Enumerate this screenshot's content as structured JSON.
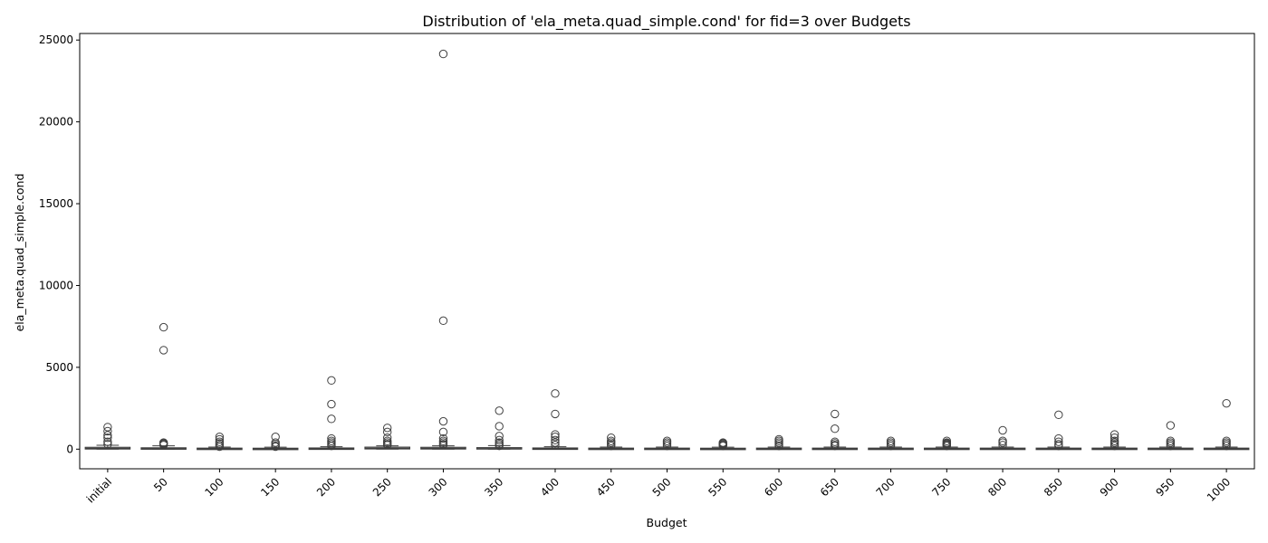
{
  "chart_data": {
    "type": "box",
    "title": "Distribution of 'ela_meta.quad_simple.cond' for fid=3 over Budgets",
    "xlabel": "Budget",
    "ylabel": "ela_meta.quad_simple.cond",
    "ylim": [
      -1200,
      25400
    ],
    "yticks": [
      0,
      5000,
      10000,
      15000,
      20000,
      25000
    ],
    "grid": false,
    "categories": [
      "initial",
      "50",
      "100",
      "150",
      "200",
      "250",
      "300",
      "350",
      "400",
      "450",
      "500",
      "550",
      "600",
      "650",
      "700",
      "750",
      "800",
      "850",
      "900",
      "950",
      "1000"
    ],
    "boxes": [
      {
        "q1": 10,
        "median": 40,
        "q3": 110,
        "whisker_low": 2,
        "whisker_high": 240,
        "outliers": [
          1350,
          1100,
          850,
          700,
          450,
          300
        ]
      },
      {
        "q1": 5,
        "median": 25,
        "q3": 80,
        "whisker_low": 1,
        "whisker_high": 200,
        "outliers": [
          7450,
          6050,
          400,
          350,
          300,
          250
        ]
      },
      {
        "q1": 5,
        "median": 20,
        "q3": 60,
        "whisker_low": 1,
        "whisker_high": 130,
        "outliers": [
          750,
          600,
          450,
          350,
          250,
          150
        ]
      },
      {
        "q1": 5,
        "median": 20,
        "q3": 55,
        "whisker_low": 1,
        "whisker_high": 120,
        "outliers": [
          750,
          400,
          300,
          200,
          150
        ]
      },
      {
        "q1": 5,
        "median": 25,
        "q3": 70,
        "whisker_low": 1,
        "whisker_high": 150,
        "outliers": [
          4200,
          2750,
          1850,
          650,
          500,
          400,
          300,
          200
        ]
      },
      {
        "q1": 15,
        "median": 50,
        "q3": 120,
        "whisker_low": 1,
        "whisker_high": 200,
        "outliers": [
          1300,
          1050,
          700,
          500,
          400,
          300,
          250
        ]
      },
      {
        "q1": 10,
        "median": 40,
        "q3": 110,
        "whisker_low": 1,
        "whisker_high": 200,
        "outliers": [
          24150,
          7850,
          1700,
          1050,
          650,
          500,
          400,
          300,
          250
        ]
      },
      {
        "q1": 8,
        "median": 30,
        "q3": 90,
        "whisker_low": 1,
        "whisker_high": 220,
        "outliers": [
          2350,
          1400,
          800,
          550,
          400,
          300,
          200
        ]
      },
      {
        "q1": 5,
        "median": 25,
        "q3": 70,
        "whisker_low": 1,
        "whisker_high": 150,
        "outliers": [
          3400,
          2150,
          900,
          750,
          550,
          400,
          250
        ]
      },
      {
        "q1": 5,
        "median": 20,
        "q3": 60,
        "whisker_low": 1,
        "whisker_high": 130,
        "outliers": [
          700,
          500,
          400,
          300,
          200
        ]
      },
      {
        "q1": 5,
        "median": 20,
        "q3": 60,
        "whisker_low": 1,
        "whisker_high": 130,
        "outliers": [
          500,
          400,
          300,
          200
        ]
      },
      {
        "q1": 5,
        "median": 20,
        "q3": 55,
        "whisker_low": 1,
        "whisker_high": 120,
        "outliers": [
          400,
          350,
          300,
          250,
          200
        ]
      },
      {
        "q1": 5,
        "median": 20,
        "q3": 60,
        "whisker_low": 1,
        "whisker_high": 130,
        "outliers": [
          600,
          500,
          400,
          300,
          200
        ]
      },
      {
        "q1": 5,
        "median": 20,
        "q3": 60,
        "whisker_low": 1,
        "whisker_high": 130,
        "outliers": [
          2150,
          1250,
          450,
          350,
          250,
          200
        ]
      },
      {
        "q1": 5,
        "median": 20,
        "q3": 60,
        "whisker_low": 1,
        "whisker_high": 130,
        "outliers": [
          500,
          400,
          300,
          200
        ]
      },
      {
        "q1": 5,
        "median": 20,
        "q3": 60,
        "whisker_low": 1,
        "whisker_high": 130,
        "outliers": [
          500,
          400,
          350,
          300,
          250,
          200
        ]
      },
      {
        "q1": 5,
        "median": 20,
        "q3": 60,
        "whisker_low": 1,
        "whisker_high": 130,
        "outliers": [
          1150,
          500,
          400,
          250
        ]
      },
      {
        "q1": 5,
        "median": 20,
        "q3": 60,
        "whisker_low": 1,
        "whisker_high": 130,
        "outliers": [
          2100,
          650,
          450,
          300,
          200
        ]
      },
      {
        "q1": 5,
        "median": 20,
        "q3": 60,
        "whisker_low": 1,
        "whisker_high": 130,
        "outliers": [
          900,
          700,
          500,
          400,
          300,
          200
        ]
      },
      {
        "q1": 5,
        "median": 20,
        "q3": 60,
        "whisker_low": 1,
        "whisker_high": 130,
        "outliers": [
          1450,
          500,
          400,
          300,
          200
        ]
      },
      {
        "q1": 5,
        "median": 20,
        "q3": 60,
        "whisker_low": 1,
        "whisker_high": 130,
        "outliers": [
          2800,
          500,
          400,
          300,
          200
        ]
      }
    ]
  }
}
